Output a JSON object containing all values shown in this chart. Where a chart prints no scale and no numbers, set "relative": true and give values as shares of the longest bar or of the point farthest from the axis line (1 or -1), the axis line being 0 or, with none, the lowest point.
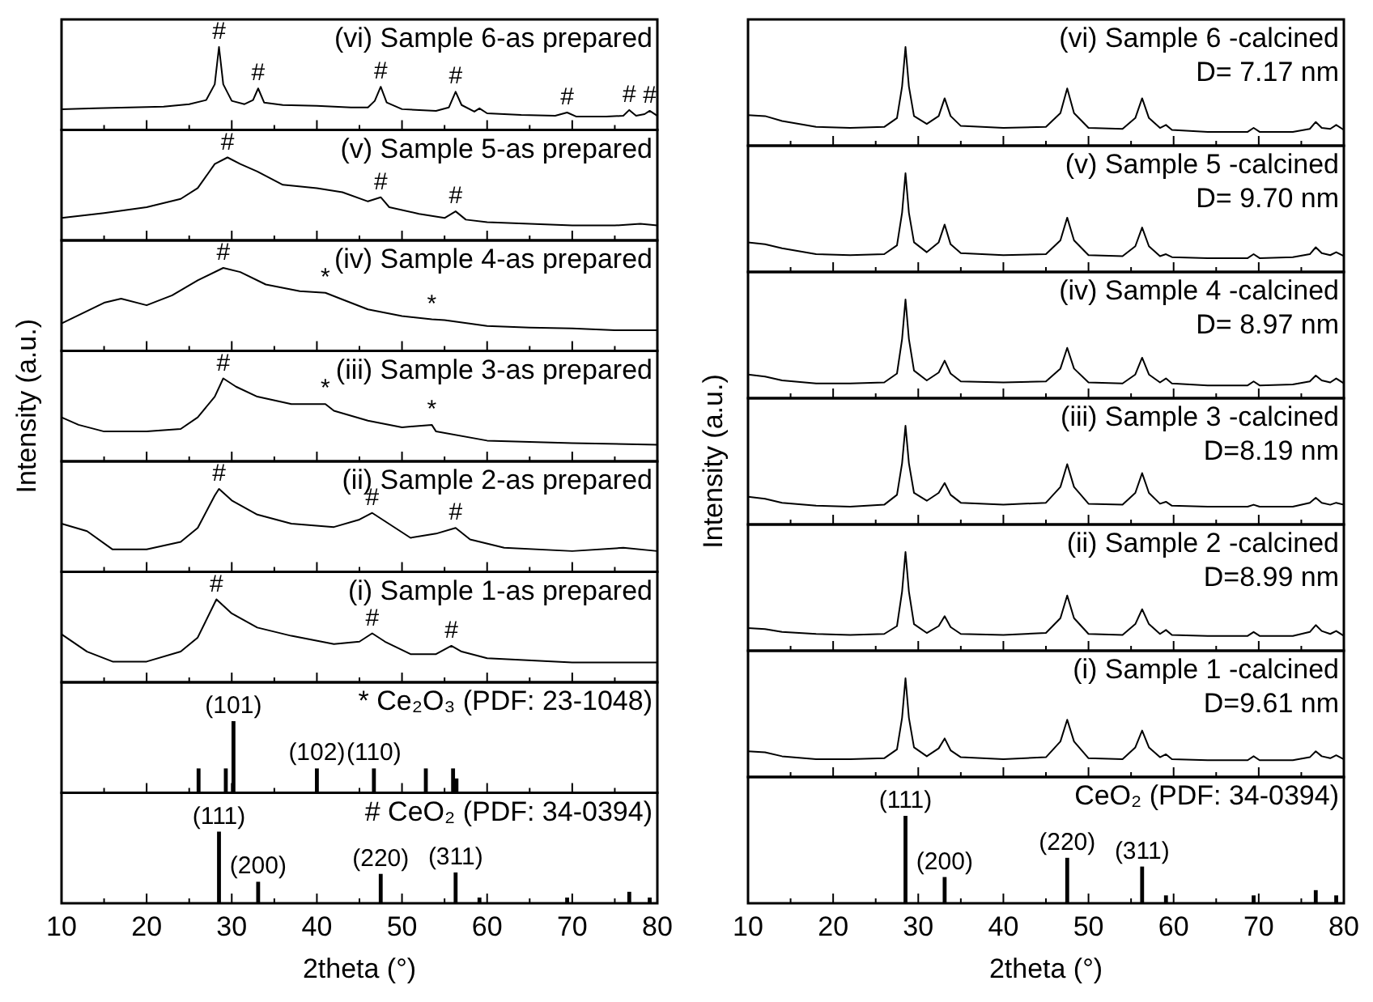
{
  "chart_data": [
    {
      "type": "line",
      "relative": true,
      "color": "#000000",
      "tick_labels": false,
      "xlim": [
        10,
        80
      ],
      "xticks": [
        10,
        {
          "value": 15,
          "label": null
        },
        20,
        {
          "value": 25,
          "label": null
        },
        30,
        {
          "value": 35,
          "label": null
        },
        40,
        {
          "value": 45,
          "label": null
        },
        50,
        {
          "value": 55,
          "label": null
        },
        60,
        {
          "value": 65,
          "label": null
        },
        70,
        {
          "value": 75,
          "label": null
        },
        80
      ],
      "x": [
        10,
        14,
        18,
        22,
        25,
        27,
        28,
        28.5,
        29,
        30,
        31.5,
        32.5,
        33.1,
        33.8,
        36,
        40,
        44,
        46,
        46.8,
        47.5,
        48.2,
        50,
        54,
        55.5,
        56.3,
        57,
        58.5,
        59.1,
        60,
        64,
        68,
        69.4,
        70.5,
        74,
        76,
        76.7,
        77.5,
        78.5,
        79.1,
        80
      ],
      "values": [
        0.25,
        0.26,
        0.27,
        0.28,
        0.31,
        0.36,
        0.55,
        1,
        0.55,
        0.35,
        0.31,
        0.36,
        0.5,
        0.33,
        0.3,
        0.29,
        0.27,
        0.27,
        0.35,
        0.52,
        0.33,
        0.25,
        0.23,
        0.27,
        0.46,
        0.3,
        0.22,
        0.26,
        0.2,
        0.18,
        0.17,
        0.21,
        0.16,
        0.16,
        0.17,
        0.24,
        0.17,
        0.19,
        0.23,
        0.17
      ],
      "annotations": [
        "(vi) Sample 6-as prepared",
        {
          "text": "#",
          "x": 28.5,
          "y": 1
        },
        {
          "text": "#",
          "x": 33.1,
          "y": 0.5
        },
        {
          "text": "#",
          "x": 47.5,
          "y": 0.52
        },
        {
          "text": "#",
          "x": 56.3,
          "y": 0.46
        },
        {
          "text": "#",
          "x": 69.4,
          "y": 0.21
        },
        {
          "text": "#",
          "x": 76.7,
          "y": 0.24
        },
        {
          "text": "#",
          "x": 79.1,
          "y": 0.23
        }
      ]
    },
    {
      "type": "line",
      "relative": true,
      "color": "#000000",
      "tick_labels": false,
      "xlim": [
        10,
        80
      ],
      "xticks": [
        10,
        {
          "value": 15,
          "label": null
        },
        20,
        {
          "value": 25,
          "label": null
        },
        30,
        {
          "value": 35,
          "label": null
        },
        40,
        {
          "value": 45,
          "label": null
        },
        50,
        {
          "value": 55,
          "label": null
        },
        60,
        {
          "value": 65,
          "label": null
        },
        70,
        {
          "value": 75,
          "label": null
        },
        80
      ],
      "x": [
        10,
        15,
        20,
        24,
        26,
        28,
        29.5,
        31,
        33,
        36,
        40,
        43,
        46,
        47.5,
        48.5,
        52,
        55,
        56.3,
        57.5,
        60,
        65,
        70,
        75,
        78,
        80
      ],
      "values": [
        0.27,
        0.33,
        0.4,
        0.5,
        0.63,
        0.92,
        1,
        0.92,
        0.83,
        0.67,
        0.63,
        0.58,
        0.47,
        0.52,
        0.4,
        0.32,
        0.27,
        0.35,
        0.25,
        0.22,
        0.2,
        0.18,
        0.18,
        0.2,
        0.18
      ],
      "annotations": [
        "(v) Sample 5-as prepared",
        {
          "text": "#",
          "x": 29.5,
          "y": 1
        },
        {
          "text": "#",
          "x": 47.5,
          "y": 0.52
        },
        {
          "text": "#",
          "x": 56.3,
          "y": 0.35
        }
      ]
    },
    {
      "type": "line",
      "relative": true,
      "color": "#000000",
      "tick_labels": false,
      "xlim": [
        10,
        80
      ],
      "xticks": [
        10,
        {
          "value": 15,
          "label": null
        },
        20,
        {
          "value": 25,
          "label": null
        },
        30,
        {
          "value": 35,
          "label": null
        },
        40,
        {
          "value": 45,
          "label": null
        },
        50,
        {
          "value": 55,
          "label": null
        },
        60,
        {
          "value": 65,
          "label": null
        },
        70,
        {
          "value": 75,
          "label": null
        },
        80
      ],
      "x": [
        10,
        15,
        17,
        20,
        23,
        26,
        29,
        31,
        34,
        38,
        41,
        43,
        46,
        50,
        53.5,
        55,
        60,
        65,
        70,
        75,
        80
      ],
      "values": [
        0.33,
        0.58,
        0.63,
        0.55,
        0.67,
        0.85,
        1,
        0.95,
        0.8,
        0.72,
        0.7,
        0.62,
        0.5,
        0.42,
        0.38,
        0.37,
        0.3,
        0.28,
        0.27,
        0.25,
        0.25
      ],
      "annotations": [
        "(iv) Sample 4-as prepared",
        {
          "text": "#",
          "x": 29,
          "y": 1
        },
        {
          "text": "*",
          "x": 41,
          "y": 0.7
        },
        {
          "text": "*",
          "x": 53.5,
          "y": 0.38
        }
      ]
    },
    {
      "type": "line",
      "relative": true,
      "color": "#000000",
      "ylabel": "Intensity (a.u.)",
      "tick_labels": false,
      "xlim": [
        10,
        80
      ],
      "xticks": [
        10,
        {
          "value": 15,
          "label": null
        },
        20,
        {
          "value": 25,
          "label": null
        },
        30,
        {
          "value": 35,
          "label": null
        },
        40,
        {
          "value": 45,
          "label": null
        },
        50,
        {
          "value": 55,
          "label": null
        },
        60,
        {
          "value": 65,
          "label": null
        },
        70,
        {
          "value": 75,
          "label": null
        },
        80
      ],
      "x": [
        10,
        12,
        15,
        20,
        24,
        26,
        28,
        29,
        30.5,
        33,
        37,
        41,
        42,
        46,
        50,
        53.5,
        54,
        60,
        70,
        80
      ],
      "values": [
        0.53,
        0.44,
        0.36,
        0.36,
        0.39,
        0.53,
        0.78,
        1,
        0.9,
        0.78,
        0.69,
        0.69,
        0.61,
        0.49,
        0.41,
        0.44,
        0.36,
        0.25,
        0.22,
        0.2
      ],
      "annotations": [
        "(iii) Sample 3-as prepared",
        {
          "text": "#",
          "x": 29,
          "y": 1
        },
        {
          "text": "*",
          "x": 41,
          "y": 0.69
        },
        {
          "text": "*",
          "x": 53.5,
          "y": 0.44
        }
      ]
    },
    {
      "type": "line",
      "relative": true,
      "color": "#000000",
      "tick_labels": false,
      "xlim": [
        10,
        80
      ],
      "xticks": [
        10,
        {
          "value": 15,
          "label": null
        },
        20,
        {
          "value": 25,
          "label": null
        },
        30,
        {
          "value": 35,
          "label": null
        },
        40,
        {
          "value": 45,
          "label": null
        },
        50,
        {
          "value": 55,
          "label": null
        },
        60,
        {
          "value": 65,
          "label": null
        },
        70,
        {
          "value": 75,
          "label": null
        },
        80
      ],
      "x": [
        10,
        13,
        16,
        20,
        24,
        26,
        28,
        28.5,
        30,
        33,
        37,
        42,
        45,
        46.5,
        48,
        51,
        54,
        56.3,
        58,
        62,
        70,
        76,
        80
      ],
      "values": [
        0.58,
        0.49,
        0.27,
        0.27,
        0.36,
        0.53,
        0.92,
        1,
        0.86,
        0.69,
        0.58,
        0.54,
        0.63,
        0.71,
        0.61,
        0.41,
        0.46,
        0.53,
        0.39,
        0.29,
        0.25,
        0.29,
        0.25
      ],
      "annotations": [
        "(ii) Sample 2-as prepared",
        {
          "text": "#",
          "x": 28.5,
          "y": 1
        },
        {
          "text": "#",
          "x": 46.5,
          "y": 0.71
        },
        {
          "text": "#",
          "x": 56.3,
          "y": 0.53
        }
      ]
    },
    {
      "type": "line",
      "relative": true,
      "color": "#000000",
      "tick_labels": false,
      "xlim": [
        10,
        80
      ],
      "xticks": [
        10,
        {
          "value": 15,
          "label": null
        },
        20,
        {
          "value": 25,
          "label": null
        },
        30,
        {
          "value": 35,
          "label": null
        },
        40,
        {
          "value": 45,
          "label": null
        },
        50,
        {
          "value": 55,
          "label": null
        },
        60,
        {
          "value": 65,
          "label": null
        },
        70,
        {
          "value": 75,
          "label": null
        },
        80
      ],
      "x": [
        10,
        13,
        16,
        20,
        24,
        26,
        28.2,
        30,
        33,
        37,
        42,
        45,
        46.5,
        48,
        51,
        54,
        55.8,
        57,
        60,
        70,
        80
      ],
      "values": [
        0.58,
        0.37,
        0.25,
        0.25,
        0.37,
        0.54,
        1,
        0.83,
        0.66,
        0.56,
        0.46,
        0.49,
        0.59,
        0.49,
        0.34,
        0.34,
        0.44,
        0.37,
        0.29,
        0.24,
        0.24
      ],
      "annotations": [
        "(i) Sample 1-as prepared",
        {
          "text": "#",
          "x": 28.2,
          "y": 1
        },
        {
          "text": "#",
          "x": 46.5,
          "y": 0.59
        },
        {
          "text": "#",
          "x": 55.8,
          "y": 0.44
        }
      ]
    },
    {
      "type": "bar",
      "relative": true,
      "color": "#000000",
      "tick_labels": false,
      "xlim": [
        10,
        80
      ],
      "xticks": [
        10,
        {
          "value": 15,
          "label": null
        },
        20,
        {
          "value": 25,
          "label": null
        },
        30,
        {
          "value": 35,
          "label": null
        },
        40,
        {
          "value": 45,
          "label": null
        },
        50,
        {
          "value": 55,
          "label": null
        },
        60,
        {
          "value": 65,
          "label": null
        },
        70,
        {
          "value": 75,
          "label": null
        },
        80
      ],
      "x": [
        26.1,
        29.3,
        30.2,
        40,
        46.7,
        52.8,
        56,
        56.4
      ],
      "values": [
        0.34,
        0.34,
        1,
        0.34,
        0.34,
        0.34,
        0.34,
        0.2
      ],
      "annotations": [
        "* Ce₂O₃ (PDF: 23-1048)",
        {
          "text": "(101)",
          "x": 30.2,
          "y": 1
        },
        {
          "text": "(102)",
          "x": 40,
          "y": 0.34
        },
        {
          "text": "(110)",
          "x": 46.7,
          "y": 0.34
        }
      ]
    },
    {
      "type": "bar",
      "relative": true,
      "color": "#000000",
      "tick_labels": "x",
      "xlabel": "2theta (°)",
      "xlim": [
        10,
        80
      ],
      "xticks": [
        10,
        {
          "value": 15,
          "label": null
        },
        20,
        {
          "value": 25,
          "label": null
        },
        30,
        {
          "value": 35,
          "label": null
        },
        40,
        {
          "value": 45,
          "label": null
        },
        50,
        {
          "value": 55,
          "label": null
        },
        60,
        {
          "value": 65,
          "label": null
        },
        70,
        {
          "value": 75,
          "label": null
        },
        80
      ],
      "x": [
        28.5,
        33.1,
        47.5,
        56.3,
        59.1,
        69.4,
        76.7,
        79.1
      ],
      "values": [
        1,
        0.3,
        0.41,
        0.43,
        0.08,
        0.08,
        0.16,
        0.08
      ],
      "annotations": [
        "# CeO₂ (PDF: 34-0394)",
        {
          "text": "(111)",
          "x": 28.5,
          "y": 1
        },
        {
          "text": "(200)",
          "x": 33.1,
          "y": 0.3
        },
        {
          "text": "(220)",
          "x": 47.5,
          "y": 0.41
        },
        {
          "text": "(311)",
          "x": 56.3,
          "y": 0.43
        }
      ]
    },
    {
      "type": "line",
      "relative": true,
      "color": "#000000",
      "tick_labels": false,
      "xlim": [
        10,
        80
      ],
      "xticks": [
        10,
        {
          "value": 15,
          "label": null
        },
        20,
        {
          "value": 25,
          "label": null
        },
        30,
        {
          "value": 35,
          "label": null
        },
        40,
        {
          "value": 45,
          "label": null
        },
        50,
        {
          "value": 55,
          "label": null
        },
        60,
        {
          "value": 65,
          "label": null
        },
        70,
        {
          "value": 75,
          "label": null
        },
        80
      ],
      "x": [
        10,
        12,
        14,
        18,
        22,
        26,
        27.5,
        28.1,
        28.5,
        28.9,
        29.5,
        31,
        32.4,
        33.1,
        33.8,
        35,
        40,
        45,
        46.7,
        47.5,
        48.3,
        50,
        54,
        55.5,
        56.3,
        57.1,
        58.4,
        59.1,
        59.8,
        64,
        68.7,
        69.4,
        70.1,
        74,
        76,
        76.7,
        77.4,
        78.4,
        79.1,
        80
      ],
      "values": [
        0.31,
        0.3,
        0.25,
        0.19,
        0.18,
        0.19,
        0.28,
        0.6,
        1,
        0.6,
        0.3,
        0.22,
        0.3,
        0.48,
        0.3,
        0.2,
        0.18,
        0.19,
        0.33,
        0.58,
        0.33,
        0.18,
        0.17,
        0.28,
        0.48,
        0.28,
        0.18,
        0.21,
        0.16,
        0.14,
        0.14,
        0.18,
        0.14,
        0.14,
        0.17,
        0.24,
        0.18,
        0.17,
        0.21,
        0.16
      ],
      "annotations": [
        "(vi) Sample 6 -calcined",
        "D= 7.17 nm"
      ]
    },
    {
      "type": "line",
      "relative": true,
      "color": "#000000",
      "tick_labels": false,
      "xlim": [
        10,
        80
      ],
      "xticks": [
        10,
        {
          "value": 15,
          "label": null
        },
        20,
        {
          "value": 25,
          "label": null
        },
        30,
        {
          "value": 35,
          "label": null
        },
        40,
        {
          "value": 45,
          "label": null
        },
        50,
        {
          "value": 55,
          "label": null
        },
        60,
        {
          "value": 65,
          "label": null
        },
        70,
        {
          "value": 75,
          "label": null
        },
        80
      ],
      "x": [
        10,
        12,
        14,
        18,
        22,
        26,
        27.5,
        28.1,
        28.5,
        28.9,
        29.5,
        31,
        32.4,
        33.1,
        33.8,
        35,
        40,
        45,
        46.7,
        47.5,
        48.3,
        50,
        54,
        55.5,
        56.3,
        57.1,
        58.4,
        59.1,
        59.8,
        64,
        68.7,
        69.4,
        70.1,
        74,
        76,
        76.7,
        77.4,
        78.4,
        79.1,
        80
      ],
      "values": [
        0.3,
        0.28,
        0.24,
        0.18,
        0.17,
        0.18,
        0.27,
        0.6,
        1,
        0.6,
        0.3,
        0.2,
        0.3,
        0.48,
        0.28,
        0.19,
        0.17,
        0.18,
        0.32,
        0.55,
        0.32,
        0.17,
        0.16,
        0.26,
        0.45,
        0.26,
        0.16,
        0.18,
        0.15,
        0.14,
        0.14,
        0.18,
        0.14,
        0.15,
        0.18,
        0.25,
        0.19,
        0.17,
        0.2,
        0.16
      ],
      "annotations": [
        "(v) Sample 5 -calcined",
        "D= 9.70 nm"
      ]
    },
    {
      "type": "line",
      "relative": true,
      "color": "#000000",
      "tick_labels": false,
      "xlim": [
        10,
        80
      ],
      "xticks": [
        10,
        {
          "value": 15,
          "label": null
        },
        20,
        {
          "value": 25,
          "label": null
        },
        30,
        {
          "value": 35,
          "label": null
        },
        40,
        {
          "value": 45,
          "label": null
        },
        50,
        {
          "value": 55,
          "label": null
        },
        60,
        {
          "value": 65,
          "label": null
        },
        70,
        {
          "value": 75,
          "label": null
        },
        80
      ],
      "x": [
        10,
        12,
        14,
        18,
        22,
        26,
        27.5,
        28.1,
        28.5,
        28.9,
        29.5,
        31,
        32.4,
        33.1,
        33.8,
        35,
        40,
        45,
        46.7,
        47.5,
        48.3,
        50,
        54,
        55.5,
        56.3,
        57.1,
        58.4,
        59.1,
        59.8,
        64,
        68.7,
        69.4,
        70.1,
        74,
        76,
        76.7,
        77.4,
        78.4,
        79.1,
        80
      ],
      "values": [
        0.24,
        0.22,
        0.18,
        0.15,
        0.15,
        0.16,
        0.25,
        0.6,
        1,
        0.6,
        0.28,
        0.18,
        0.26,
        0.38,
        0.25,
        0.17,
        0.16,
        0.17,
        0.3,
        0.51,
        0.3,
        0.16,
        0.15,
        0.24,
        0.41,
        0.24,
        0.16,
        0.2,
        0.15,
        0.13,
        0.13,
        0.17,
        0.13,
        0.14,
        0.17,
        0.23,
        0.18,
        0.16,
        0.2,
        0.15
      ],
      "annotations": [
        "(iv) Sample 4 -calcined",
        "D= 8.97 nm"
      ]
    },
    {
      "type": "line",
      "relative": true,
      "color": "#000000",
      "ylabel": "Intensity (a.u.)",
      "tick_labels": false,
      "xlim": [
        10,
        80
      ],
      "xticks": [
        10,
        {
          "value": 15,
          "label": null
        },
        20,
        {
          "value": 25,
          "label": null
        },
        30,
        {
          "value": 35,
          "label": null
        },
        40,
        {
          "value": 45,
          "label": null
        },
        50,
        {
          "value": 55,
          "label": null
        },
        60,
        {
          "value": 65,
          "label": null
        },
        70,
        {
          "value": 75,
          "label": null
        },
        80
      ],
      "x": [
        10,
        12,
        14,
        18,
        22,
        26,
        27.5,
        28.1,
        28.5,
        28.9,
        29.5,
        31,
        32.4,
        33.1,
        33.8,
        35,
        40,
        45,
        46.7,
        47.5,
        48.3,
        50,
        54,
        55.5,
        56.3,
        57.1,
        58.4,
        59.1,
        59.8,
        64,
        68.7,
        69.4,
        70.1,
        74,
        76,
        76.7,
        77.4,
        78.4,
        79.1,
        80
      ],
      "values": [
        0.28,
        0.26,
        0.22,
        0.19,
        0.18,
        0.2,
        0.3,
        0.62,
        1,
        0.62,
        0.32,
        0.24,
        0.32,
        0.42,
        0.3,
        0.22,
        0.2,
        0.22,
        0.38,
        0.61,
        0.38,
        0.21,
        0.2,
        0.32,
        0.52,
        0.32,
        0.21,
        0.23,
        0.19,
        0.18,
        0.18,
        0.2,
        0.18,
        0.18,
        0.22,
        0.27,
        0.22,
        0.2,
        0.22,
        0.2
      ],
      "annotations": [
        "(iii) Sample 3 -calcined",
        "D=8.19 nm"
      ]
    },
    {
      "type": "line",
      "relative": true,
      "color": "#000000",
      "tick_labels": false,
      "xlim": [
        10,
        80
      ],
      "xticks": [
        10,
        {
          "value": 15,
          "label": null
        },
        20,
        {
          "value": 25,
          "label": null
        },
        30,
        {
          "value": 35,
          "label": null
        },
        40,
        {
          "value": 45,
          "label": null
        },
        50,
        {
          "value": 55,
          "label": null
        },
        60,
        {
          "value": 65,
          "label": null
        },
        70,
        {
          "value": 75,
          "label": null
        },
        80
      ],
      "x": [
        10,
        12,
        14,
        18,
        22,
        26,
        27.5,
        28.1,
        28.5,
        28.9,
        29.5,
        31,
        32.4,
        33.1,
        33.8,
        35,
        40,
        45,
        46.7,
        47.5,
        48.3,
        50,
        54,
        55.5,
        56.3,
        57.1,
        58.4,
        59.1,
        59.8,
        64,
        68.7,
        69.4,
        70.1,
        74,
        76,
        76.7,
        77.4,
        78.4,
        79.1,
        80
      ],
      "values": [
        0.23,
        0.22,
        0.19,
        0.17,
        0.16,
        0.17,
        0.25,
        0.6,
        1,
        0.6,
        0.27,
        0.18,
        0.25,
        0.35,
        0.24,
        0.17,
        0.16,
        0.18,
        0.33,
        0.56,
        0.33,
        0.17,
        0.16,
        0.27,
        0.42,
        0.27,
        0.17,
        0.21,
        0.16,
        0.15,
        0.15,
        0.19,
        0.15,
        0.15,
        0.19,
        0.26,
        0.2,
        0.17,
        0.2,
        0.15
      ],
      "annotations": [
        "(ii) Sample 2 -calcined",
        "D=8.99 nm"
      ]
    },
    {
      "type": "line",
      "relative": true,
      "color": "#000000",
      "tick_labels": false,
      "xlim": [
        10,
        80
      ],
      "xticks": [
        10,
        {
          "value": 15,
          "label": null
        },
        20,
        {
          "value": 25,
          "label": null
        },
        30,
        {
          "value": 35,
          "label": null
        },
        40,
        {
          "value": 45,
          "label": null
        },
        50,
        {
          "value": 55,
          "label": null
        },
        60,
        {
          "value": 65,
          "label": null
        },
        70,
        {
          "value": 75,
          "label": null
        },
        80
      ],
      "x": [
        10,
        12,
        14,
        18,
        22,
        26,
        27.5,
        28.1,
        28.5,
        28.9,
        29.5,
        31,
        32.4,
        33.1,
        33.8,
        35,
        40,
        45,
        46.7,
        47.5,
        48.3,
        50,
        54,
        55.5,
        56.3,
        57.1,
        58.4,
        59.1,
        59.8,
        64,
        68.7,
        69.4,
        70.1,
        74,
        76,
        76.7,
        77.4,
        78.4,
        79.1,
        80
      ],
      "values": [
        0.26,
        0.25,
        0.21,
        0.18,
        0.18,
        0.19,
        0.28,
        0.6,
        1,
        0.6,
        0.3,
        0.21,
        0.29,
        0.39,
        0.27,
        0.2,
        0.18,
        0.2,
        0.36,
        0.58,
        0.36,
        0.19,
        0.18,
        0.3,
        0.47,
        0.3,
        0.2,
        0.23,
        0.18,
        0.17,
        0.17,
        0.21,
        0.17,
        0.17,
        0.2,
        0.26,
        0.21,
        0.19,
        0.22,
        0.18
      ],
      "annotations": [
        "(i) Sample 1 -calcined",
        "D=9.61 nm"
      ]
    },
    {
      "type": "bar",
      "relative": true,
      "color": "#000000",
      "tick_labels": "x",
      "xlabel": "2theta (°)",
      "xlim": [
        10,
        80
      ],
      "xticks": [
        10,
        {
          "value": 15,
          "label": null
        },
        20,
        {
          "value": 25,
          "label": null
        },
        30,
        {
          "value": 35,
          "label": null
        },
        40,
        {
          "value": 45,
          "label": null
        },
        50,
        {
          "value": 55,
          "label": null
        },
        60,
        {
          "value": 65,
          "label": null
        },
        70,
        {
          "value": 75,
          "label": null
        },
        80
      ],
      "x": [
        28.5,
        33.1,
        47.5,
        56.3,
        59.1,
        69.4,
        76.7,
        79.1
      ],
      "values": [
        1,
        0.3,
        0.52,
        0.42,
        0.09,
        0.09,
        0.15,
        0.09
      ],
      "annotations": [
        "CeO₂ (PDF: 34-0394)",
        {
          "text": "(111)",
          "x": 28.5,
          "y": 1
        },
        {
          "text": "(200)",
          "x": 33.1,
          "y": 0.3
        },
        {
          "text": "(220)",
          "x": 47.5,
          "y": 0.52
        },
        {
          "text": "(311)",
          "x": 56.3,
          "y": 0.42
        }
      ]
    }
  ]
}
